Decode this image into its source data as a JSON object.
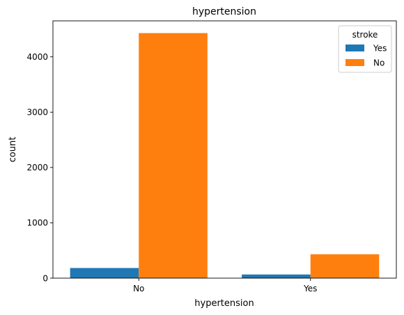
{
  "chart_data": {
    "type": "bar",
    "title": "hypertension",
    "xlabel": "hypertension",
    "ylabel": "count",
    "categories": [
      "No",
      "Yes"
    ],
    "series": [
      {
        "name": "Yes",
        "values": [
          183,
          66
        ],
        "color": "#1f77b4"
      },
      {
        "name": "No",
        "values": [
          4429,
          432
        ],
        "color": "#ff7f0e"
      }
    ],
    "ylim": [
      0,
      4650
    ],
    "yticks": [
      0,
      1000,
      2000,
      3000,
      4000
    ],
    "legend": {
      "title": "stroke",
      "placement": "top-right"
    },
    "grid": false
  }
}
